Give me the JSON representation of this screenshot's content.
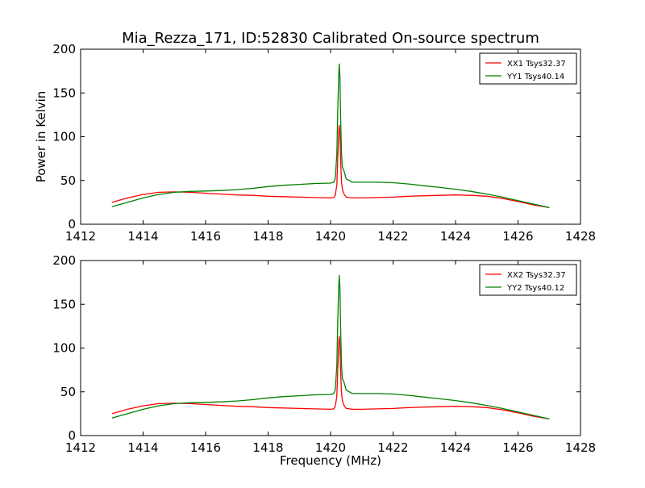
{
  "figure": {
    "title": "Mia_Rezza_171, ID:52830 Calibrated On-source spectrum"
  },
  "chart_data": [
    {
      "type": "line",
      "title": "Mia_Rezza_171, ID:52830 Calibrated On-source spectrum",
      "xlabel": "",
      "ylabel": "Power in Kelvin",
      "xlim": [
        1412,
        1428
      ],
      "ylim": [
        0,
        200
      ],
      "xticks": [
        1412,
        1414,
        1416,
        1418,
        1420,
        1422,
        1424,
        1426,
        1428
      ],
      "yticks": [
        0,
        50,
        100,
        150,
        200
      ],
      "legend": "top-right",
      "grid": false,
      "series": [
        {
          "name": "XX1 Tsys32.37",
          "color": "#ff0000",
          "x": [
            1413.0,
            1413.5,
            1414.0,
            1414.5,
            1415.0,
            1415.5,
            1416.0,
            1416.5,
            1417.0,
            1417.5,
            1418.0,
            1418.5,
            1419.0,
            1419.5,
            1420.0,
            1420.1,
            1420.15,
            1420.2,
            1420.23,
            1420.26,
            1420.28,
            1420.3,
            1420.32,
            1420.35,
            1420.38,
            1420.42,
            1420.5,
            1420.7,
            1421.0,
            1421.5,
            1422.0,
            1422.5,
            1423.0,
            1423.5,
            1424.0,
            1424.5,
            1425.0,
            1425.5,
            1426.0,
            1426.5,
            1427.0
          ],
          "y": [
            25,
            30,
            34,
            36.5,
            37,
            36.5,
            35.5,
            34.5,
            33.5,
            33,
            32,
            31.5,
            31,
            30.5,
            30,
            30.5,
            33,
            45,
            75,
            105,
            113,
            105,
            75,
            48,
            40,
            35,
            31,
            30,
            30,
            30.5,
            31,
            32,
            32.5,
            33,
            33.5,
            33,
            32,
            29.5,
            26,
            22,
            19
          ]
        },
        {
          "name": "YY1 Tsys40.14",
          "color": "#008000",
          "x": [
            1413.0,
            1413.5,
            1414.0,
            1414.5,
            1415.0,
            1415.5,
            1416.0,
            1416.5,
            1417.0,
            1417.5,
            1418.0,
            1418.5,
            1419.0,
            1419.5,
            1420.0,
            1420.1,
            1420.15,
            1420.2,
            1420.23,
            1420.26,
            1420.28,
            1420.3,
            1420.32,
            1420.35,
            1420.38,
            1420.42,
            1420.5,
            1420.7,
            1421.0,
            1421.5,
            1422.0,
            1422.5,
            1423.0,
            1423.5,
            1424.0,
            1424.5,
            1425.0,
            1425.5,
            1426.0,
            1426.5,
            1427.0
          ],
          "y": [
            20,
            25,
            30,
            34,
            36.5,
            37.5,
            38,
            38.5,
            39.5,
            41,
            43,
            44.5,
            45.5,
            46.5,
            47,
            48,
            52,
            80,
            130,
            170,
            183,
            170,
            125,
            80,
            65,
            62,
            52,
            48,
            48,
            48,
            47.5,
            46,
            44,
            42,
            40,
            37.5,
            34.5,
            31,
            27,
            23,
            19
          ]
        }
      ]
    },
    {
      "type": "line",
      "title": "",
      "xlabel": "Frequency (MHz)",
      "ylabel": "",
      "xlim": [
        1412,
        1428
      ],
      "ylim": [
        0,
        200
      ],
      "xticks": [
        1412,
        1414,
        1416,
        1418,
        1420,
        1422,
        1424,
        1426,
        1428
      ],
      "yticks": [
        0,
        50,
        100,
        150,
        200
      ],
      "legend": "top-right",
      "grid": false,
      "series": [
        {
          "name": "XX2 Tsys32.37",
          "color": "#ff0000",
          "x": [
            1413.0,
            1413.5,
            1414.0,
            1414.5,
            1415.0,
            1415.5,
            1416.0,
            1416.5,
            1417.0,
            1417.5,
            1418.0,
            1418.5,
            1419.0,
            1419.5,
            1420.0,
            1420.1,
            1420.15,
            1420.2,
            1420.23,
            1420.26,
            1420.28,
            1420.3,
            1420.32,
            1420.35,
            1420.38,
            1420.42,
            1420.5,
            1420.7,
            1421.0,
            1421.5,
            1422.0,
            1422.5,
            1423.0,
            1423.5,
            1424.0,
            1424.5,
            1425.0,
            1425.5,
            1426.0,
            1426.5,
            1427.0
          ],
          "y": [
            25,
            30,
            34,
            36.5,
            37,
            36.5,
            35.5,
            34.5,
            33.5,
            33,
            32,
            31.5,
            31,
            30.5,
            30,
            30.5,
            33,
            45,
            75,
            105,
            113,
            105,
            75,
            48,
            40,
            35,
            31,
            30,
            30,
            30.5,
            31,
            32,
            32.5,
            33,
            33.5,
            33,
            32,
            29.5,
            26,
            22,
            19
          ]
        },
        {
          "name": "YY2 Tsys40.12",
          "color": "#008000",
          "x": [
            1413.0,
            1413.5,
            1414.0,
            1414.5,
            1415.0,
            1415.5,
            1416.0,
            1416.5,
            1417.0,
            1417.5,
            1418.0,
            1418.5,
            1419.0,
            1419.5,
            1420.0,
            1420.1,
            1420.15,
            1420.2,
            1420.23,
            1420.26,
            1420.28,
            1420.3,
            1420.32,
            1420.35,
            1420.38,
            1420.42,
            1420.5,
            1420.7,
            1421.0,
            1421.5,
            1422.0,
            1422.5,
            1423.0,
            1423.5,
            1424.0,
            1424.5,
            1425.0,
            1425.5,
            1426.0,
            1426.5,
            1427.0
          ],
          "y": [
            20,
            25,
            30,
            34,
            36.5,
            37.5,
            38,
            38.5,
            39.5,
            41,
            43,
            44.5,
            45.5,
            46.5,
            47,
            48,
            52,
            80,
            130,
            170,
            183,
            170,
            125,
            80,
            65,
            62,
            52,
            48,
            48,
            48,
            47.5,
            46,
            44,
            42,
            40,
            37.5,
            34.5,
            31,
            27,
            23,
            19
          ]
        }
      ]
    }
  ]
}
